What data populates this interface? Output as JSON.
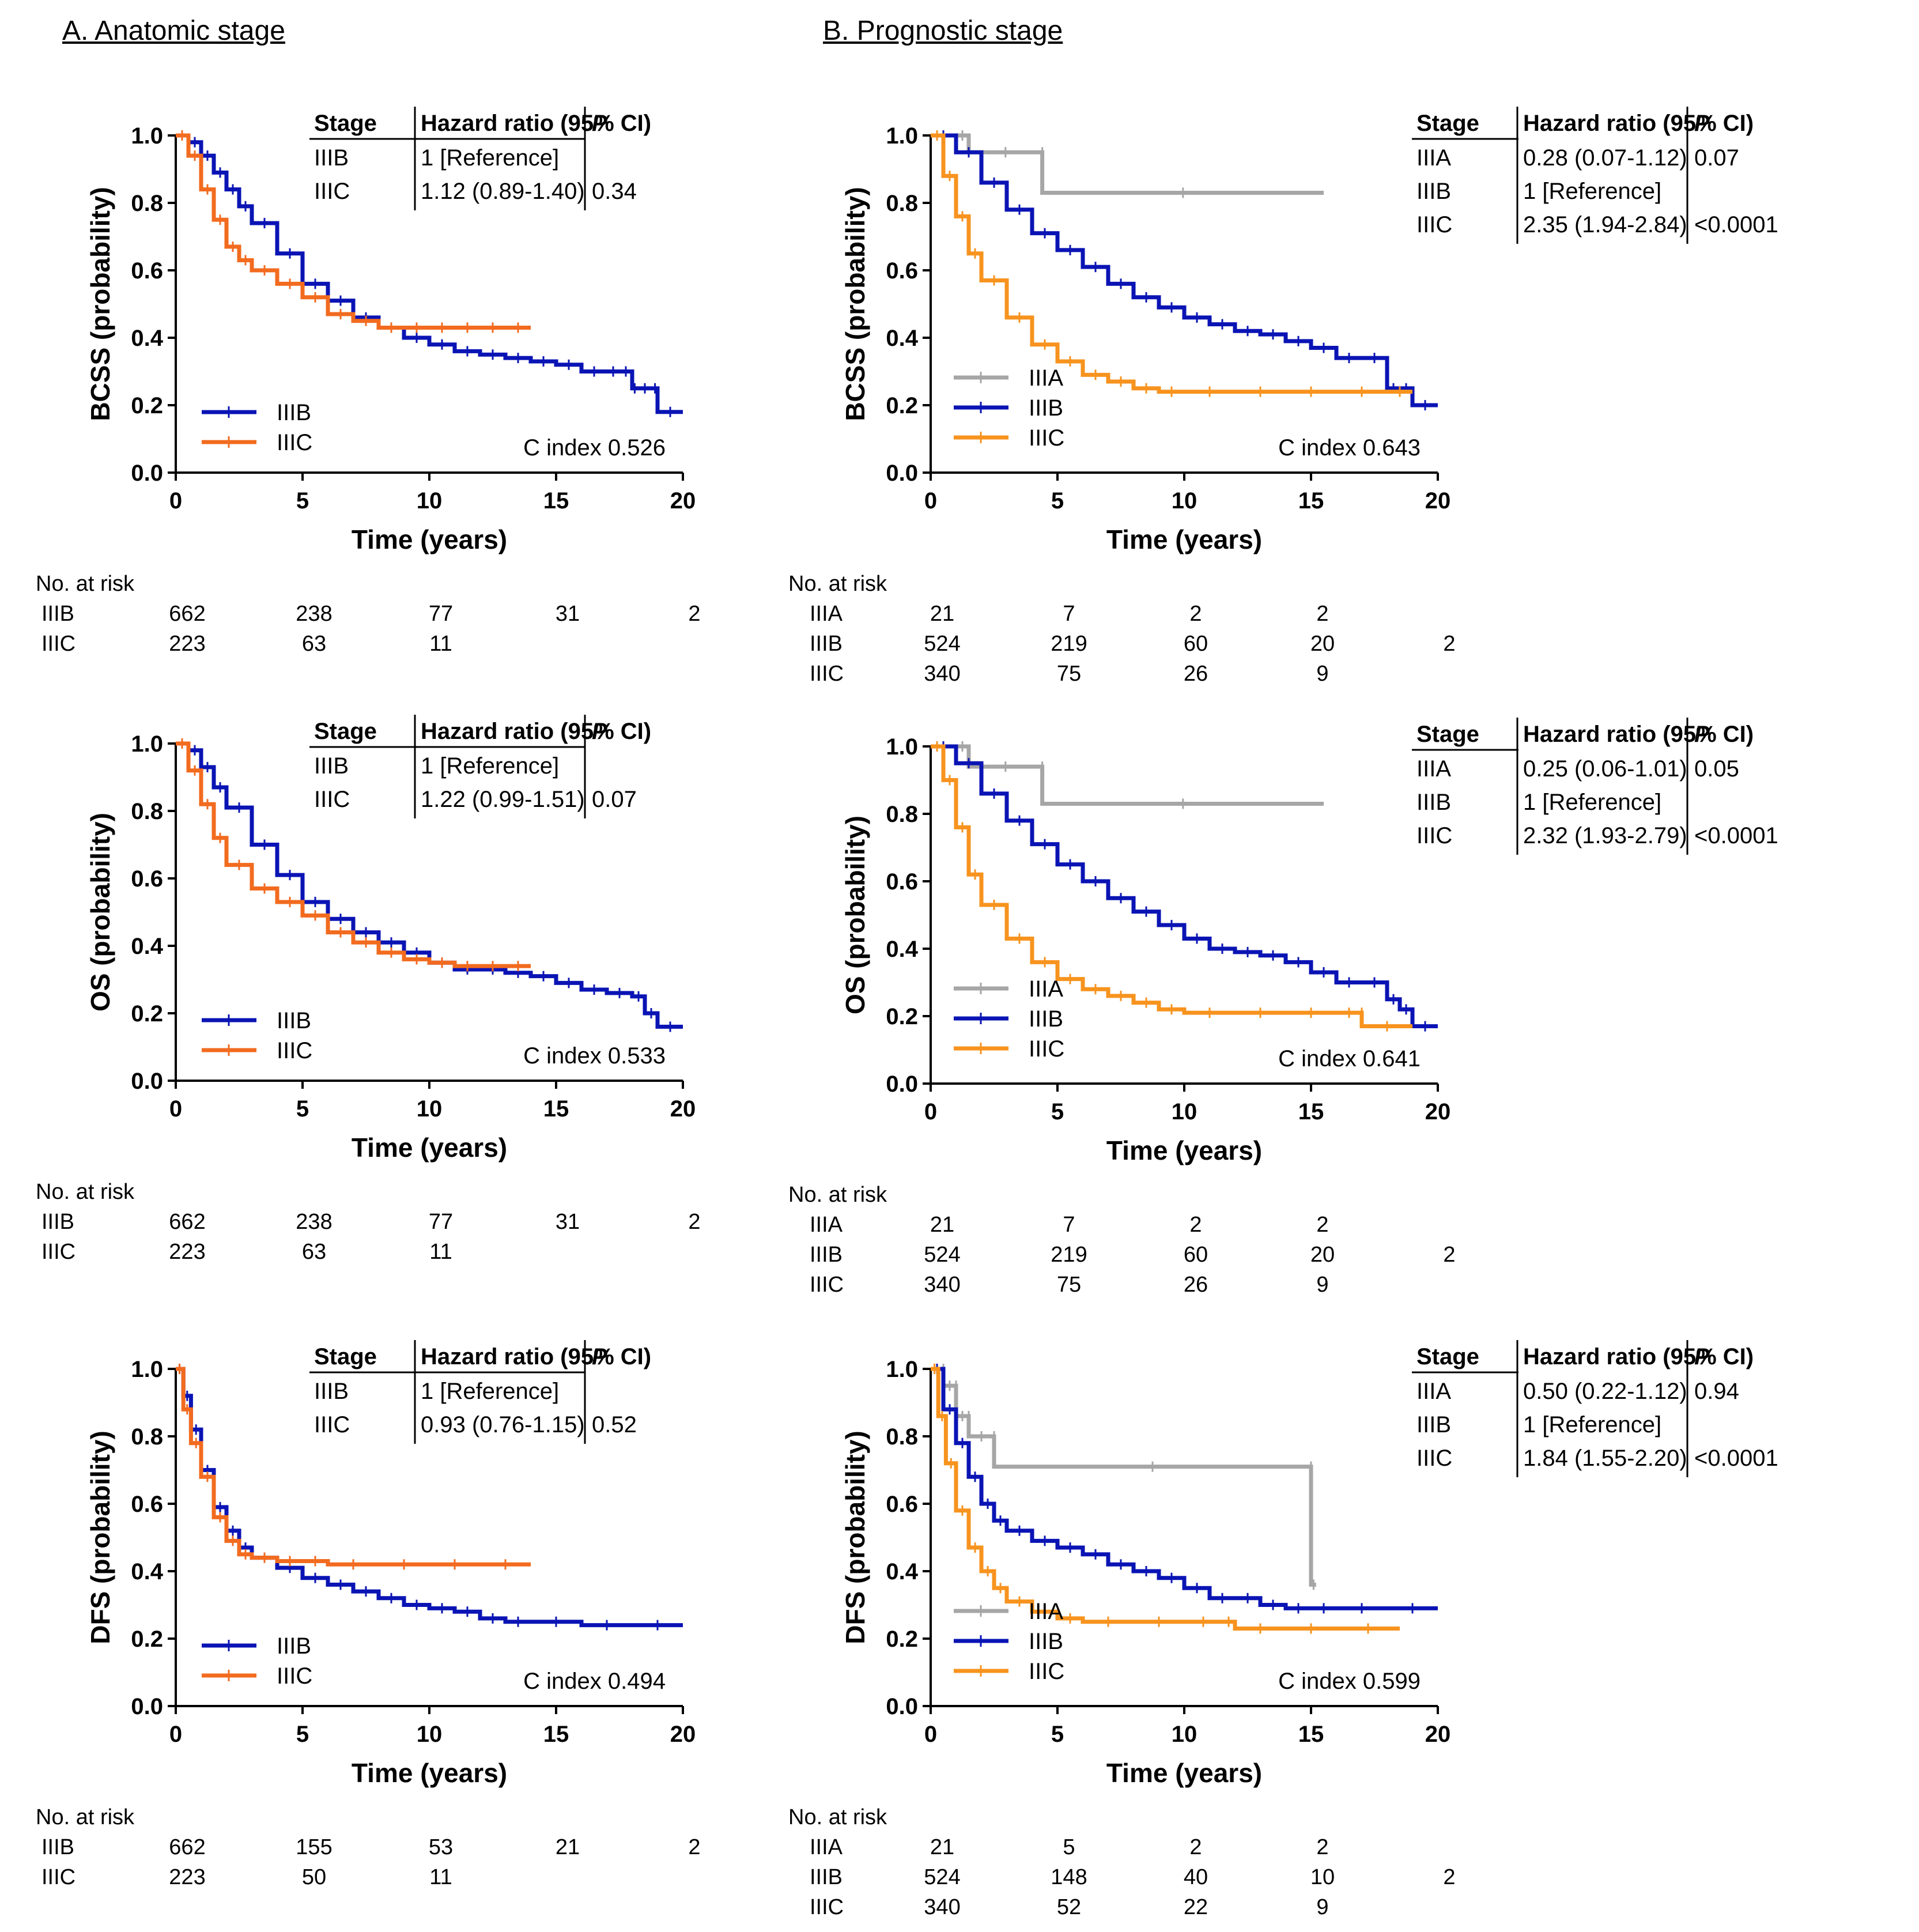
{
  "columns": {
    "a": "A. Anatomic stage",
    "b": "B. Prognostic stage"
  },
  "colors": {
    "IIIA": "#a6a6a6",
    "IIIB": "#0a14b4",
    "IIIC_anat": "#f26b1f",
    "IIIC_prog": "#f7931e"
  },
  "xticks": [
    "0",
    "5",
    "10",
    "15",
    "20"
  ],
  "yticks": [
    "0.0",
    "0.2",
    "0.4",
    "0.6",
    "0.8",
    "1.0"
  ],
  "risk_title": "No. at risk",
  "hr_header": {
    "stage": "Stage",
    "hr": "Hazard ratio (95% CI)",
    "p": "P"
  },
  "chart_data": [
    {
      "id": "a_bcss",
      "type": "line",
      "title": "",
      "xlabel": "Time (years)",
      "ylabel": "BCSS (probability)",
      "xlim": [
        0,
        20
      ],
      "ylim": [
        0,
        1
      ],
      "c_index": "C index 0.526",
      "series": [
        {
          "name": "IIIB",
          "color_key": "IIIB",
          "x": [
            0,
            0.5,
            1,
            1.5,
            2,
            2.5,
            3,
            4,
            5,
            6,
            7,
            8,
            9,
            10,
            11,
            12,
            13,
            14,
            15,
            16,
            17,
            17.5,
            18,
            18.2,
            18.8,
            19,
            20
          ],
          "y": [
            1,
            0.98,
            0.94,
            0.89,
            0.84,
            0.79,
            0.74,
            0.65,
            0.56,
            0.51,
            0.46,
            0.43,
            0.4,
            0.38,
            0.36,
            0.35,
            0.34,
            0.33,
            0.32,
            0.3,
            0.3,
            0.3,
            0.25,
            0.25,
            0.25,
            0.18,
            0.18
          ]
        },
        {
          "name": "IIIC",
          "color_key": "IIIC_anat",
          "x": [
            0,
            0.5,
            1,
            1.5,
            2,
            2.5,
            3,
            4,
            5,
            6,
            7,
            8,
            9,
            10,
            11,
            12,
            13,
            14
          ],
          "y": [
            1,
            0.94,
            0.84,
            0.75,
            0.67,
            0.63,
            0.6,
            0.56,
            0.52,
            0.47,
            0.45,
            0.43,
            0.43,
            0.43,
            0.43,
            0.43,
            0.43,
            0.43
          ]
        }
      ],
      "hr_table": [
        {
          "stage": "IIIB",
          "hr": "1 [Reference]",
          "p": ""
        },
        {
          "stage": "IIIC",
          "hr": "1.12 (0.89-1.40)",
          "p": "0.34"
        }
      ],
      "risk": [
        {
          "stage": "IIIB",
          "values": [
            "662",
            "238",
            "77",
            "31",
            "2"
          ]
        },
        {
          "stage": "IIIC",
          "values": [
            "223",
            "63",
            "11",
            "",
            ""
          ]
        }
      ]
    },
    {
      "id": "b_bcss",
      "type": "line",
      "title": "",
      "xlabel": "Time (years)",
      "ylabel": "BCSS (probability)",
      "xlim": [
        0,
        20
      ],
      "ylim": [
        0,
        1
      ],
      "c_index": "C index 0.643",
      "series": [
        {
          "name": "IIIA",
          "color_key": "IIIA",
          "x": [
            0,
            1,
            1.5,
            4.4,
            4.4,
            15.5
          ],
          "y": [
            1,
            1,
            0.95,
            0.95,
            0.83,
            0.83
          ]
        },
        {
          "name": "IIIB",
          "color_key": "IIIB",
          "x": [
            0,
            1,
            2,
            3,
            4,
            5,
            6,
            7,
            8,
            9,
            10,
            11,
            12,
            13,
            14,
            15,
            16,
            17,
            18,
            18.5,
            19,
            20
          ],
          "y": [
            1,
            0.95,
            0.86,
            0.78,
            0.71,
            0.66,
            0.61,
            0.56,
            0.52,
            0.49,
            0.46,
            0.44,
            0.42,
            0.41,
            0.39,
            0.37,
            0.34,
            0.34,
            0.25,
            0.25,
            0.2,
            0.2
          ]
        },
        {
          "name": "IIIC",
          "color_key": "IIIC_prog",
          "x": [
            0,
            0.5,
            1,
            1.5,
            2,
            3,
            4,
            5,
            6,
            7,
            8,
            9,
            10,
            12,
            14,
            16,
            18,
            19
          ],
          "y": [
            1,
            0.88,
            0.76,
            0.65,
            0.57,
            0.46,
            0.38,
            0.33,
            0.29,
            0.27,
            0.25,
            0.24,
            0.24,
            0.24,
            0.24,
            0.24,
            0.24,
            0.24
          ]
        }
      ],
      "hr_table": [
        {
          "stage": "IIIA",
          "hr": "0.28 (0.07-1.12)",
          "p": "0.07"
        },
        {
          "stage": "IIIB",
          "hr": "1 [Reference]",
          "p": ""
        },
        {
          "stage": "IIIC",
          "hr": "2.35 (1.94-2.84)",
          "p": "<0.0001"
        }
      ],
      "risk": [
        {
          "stage": "IIIA",
          "values": [
            "21",
            "7",
            "2",
            "2",
            ""
          ]
        },
        {
          "stage": "IIIB",
          "values": [
            "524",
            "219",
            "60",
            "20",
            "2"
          ]
        },
        {
          "stage": "IIIC",
          "values": [
            "340",
            "75",
            "26",
            "9",
            ""
          ]
        }
      ]
    },
    {
      "id": "a_os",
      "type": "line",
      "title": "",
      "xlabel": "Time (years)",
      "ylabel": "OS (probability)",
      "xlim": [
        0,
        20
      ],
      "ylim": [
        0,
        1
      ],
      "c_index": "C index 0.533",
      "series": [
        {
          "name": "IIIB",
          "color_key": "IIIB",
          "x": [
            0,
            0.5,
            1,
            1.5,
            2,
            3,
            4,
            5,
            6,
            7,
            8,
            9,
            10,
            11,
            12,
            13,
            14,
            15,
            16,
            17,
            18,
            18.5,
            19,
            20
          ],
          "y": [
            1,
            0.98,
            0.93,
            0.87,
            0.81,
            0.7,
            0.61,
            0.53,
            0.48,
            0.44,
            0.41,
            0.38,
            0.35,
            0.33,
            0.33,
            0.32,
            0.31,
            0.29,
            0.27,
            0.26,
            0.25,
            0.2,
            0.16,
            0.16
          ]
        },
        {
          "name": "IIIC",
          "color_key": "IIIC_anat",
          "x": [
            0,
            0.5,
            1,
            1.5,
            2,
            3,
            4,
            5,
            6,
            7,
            8,
            9,
            10,
            11,
            12,
            13,
            14
          ],
          "y": [
            1,
            0.92,
            0.82,
            0.72,
            0.64,
            0.57,
            0.53,
            0.49,
            0.44,
            0.41,
            0.38,
            0.36,
            0.35,
            0.34,
            0.34,
            0.34,
            0.34
          ]
        }
      ],
      "hr_table": [
        {
          "stage": "IIIB",
          "hr": "1 [Reference]",
          "p": ""
        },
        {
          "stage": "IIIC",
          "hr": "1.22 (0.99-1.51)",
          "p": "0.07"
        }
      ],
      "risk": [
        {
          "stage": "IIIB",
          "values": [
            "662",
            "238",
            "77",
            "31",
            "2"
          ]
        },
        {
          "stage": "IIIC",
          "values": [
            "223",
            "63",
            "11",
            "",
            ""
          ]
        }
      ]
    },
    {
      "id": "b_os",
      "type": "line",
      "title": "",
      "xlabel": "Time (years)",
      "ylabel": "OS (probability)",
      "xlim": [
        0,
        20
      ],
      "ylim": [
        0,
        1
      ],
      "c_index": "C index 0.641",
      "series": [
        {
          "name": "IIIA",
          "color_key": "IIIA",
          "x": [
            0,
            1,
            1.5,
            4.4,
            4.4,
            15.5
          ],
          "y": [
            1,
            1,
            0.94,
            0.94,
            0.83,
            0.83
          ]
        },
        {
          "name": "IIIB",
          "color_key": "IIIB",
          "x": [
            0,
            1,
            2,
            3,
            4,
            5,
            6,
            7,
            8,
            9,
            10,
            11,
            12,
            13,
            14,
            15,
            16,
            17,
            18,
            18.5,
            19,
            20
          ],
          "y": [
            1,
            0.95,
            0.86,
            0.78,
            0.71,
            0.65,
            0.6,
            0.55,
            0.51,
            0.47,
            0.43,
            0.4,
            0.39,
            0.38,
            0.36,
            0.33,
            0.3,
            0.3,
            0.25,
            0.22,
            0.17,
            0.17
          ]
        },
        {
          "name": "IIIC",
          "color_key": "IIIC_prog",
          "x": [
            0,
            0.5,
            1,
            1.5,
            2,
            3,
            4,
            5,
            6,
            7,
            8,
            9,
            10,
            12,
            14,
            16,
            17,
            17,
            19
          ],
          "y": [
            1,
            0.9,
            0.76,
            0.62,
            0.53,
            0.43,
            0.36,
            0.31,
            0.28,
            0.26,
            0.24,
            0.22,
            0.21,
            0.21,
            0.21,
            0.21,
            0.21,
            0.17,
            0.17
          ]
        }
      ],
      "hr_table": [
        {
          "stage": "IIIA",
          "hr": "0.25 (0.06-1.01)",
          "p": "0.05"
        },
        {
          "stage": "IIIB",
          "hr": "1 [Reference]",
          "p": ""
        },
        {
          "stage": "IIIC",
          "hr": "2.32 (1.93-2.79)",
          "p": "<0.0001"
        }
      ],
      "risk": [
        {
          "stage": "IIIA",
          "values": [
            "21",
            "7",
            "2",
            "2",
            ""
          ]
        },
        {
          "stage": "IIIB",
          "values": [
            "524",
            "219",
            "60",
            "20",
            "2"
          ]
        },
        {
          "stage": "IIIC",
          "values": [
            "340",
            "75",
            "26",
            "9",
            ""
          ]
        }
      ]
    },
    {
      "id": "a_dfs",
      "type": "line",
      "title": "",
      "xlabel": "Time (years)",
      "ylabel": "DFS (probability)",
      "xlim": [
        0,
        20
      ],
      "ylim": [
        0,
        1
      ],
      "c_index": "C index 0.494",
      "series": [
        {
          "name": "IIIB",
          "color_key": "IIIB",
          "x": [
            0,
            0.3,
            0.6,
            1,
            1.5,
            2,
            2.5,
            3,
            4,
            5,
            6,
            7,
            8,
            9,
            10,
            11,
            12,
            13,
            14,
            16,
            18,
            20
          ],
          "y": [
            1,
            0.92,
            0.82,
            0.7,
            0.59,
            0.52,
            0.47,
            0.44,
            0.41,
            0.38,
            0.36,
            0.34,
            0.32,
            0.3,
            0.29,
            0.28,
            0.26,
            0.25,
            0.25,
            0.24,
            0.24,
            0.24
          ]
        },
        {
          "name": "IIIC",
          "color_key": "IIIC_anat",
          "x": [
            0,
            0.3,
            0.6,
            1,
            1.5,
            2,
            2.5,
            3,
            4,
            5,
            6,
            8,
            10,
            12,
            14
          ],
          "y": [
            1,
            0.88,
            0.78,
            0.68,
            0.56,
            0.49,
            0.45,
            0.44,
            0.43,
            0.43,
            0.42,
            0.42,
            0.42,
            0.42,
            0.42
          ]
        }
      ],
      "hr_table": [
        {
          "stage": "IIIB",
          "hr": "1 [Reference]",
          "p": ""
        },
        {
          "stage": "IIIC",
          "hr": "0.93 (0.76-1.15)",
          "p": "0.52"
        }
      ],
      "risk": [
        {
          "stage": "IIIB",
          "values": [
            "662",
            "155",
            "53",
            "21",
            "2"
          ]
        },
        {
          "stage": "IIIC",
          "values": [
            "223",
            "50",
            "11",
            "",
            ""
          ]
        }
      ]
    },
    {
      "id": "b_dfs",
      "type": "line",
      "title": "",
      "xlabel": "Time (years)",
      "ylabel": "DFS (probability)",
      "xlim": [
        0,
        20
      ],
      "ylim": [
        0,
        1
      ],
      "c_index": "C index 0.599",
      "series": [
        {
          "name": "IIIA",
          "color_key": "IIIA",
          "x": [
            0,
            0.5,
            0.5,
            1,
            1,
            1.5,
            1.5,
            2.5,
            2.5,
            15,
            15,
            15.2
          ],
          "y": [
            1,
            1,
            0.95,
            0.95,
            0.86,
            0.86,
            0.8,
            0.8,
            0.71,
            0.71,
            0.36,
            0.36
          ]
        },
        {
          "name": "IIIB",
          "color_key": "IIIB",
          "x": [
            0,
            0.5,
            1,
            1.5,
            2,
            2.5,
            3,
            4,
            5,
            6,
            7,
            8,
            9,
            10,
            11,
            12,
            13,
            14,
            15,
            16,
            18,
            20
          ],
          "y": [
            1,
            0.88,
            0.78,
            0.68,
            0.6,
            0.55,
            0.52,
            0.49,
            0.47,
            0.45,
            0.42,
            0.4,
            0.38,
            0.35,
            0.32,
            0.32,
            0.3,
            0.29,
            0.29,
            0.29,
            0.29,
            0.29
          ]
        },
        {
          "name": "IIIC",
          "color_key": "IIIC_prog",
          "x": [
            0,
            0.3,
            0.6,
            1,
            1.5,
            2,
            2.5,
            3,
            4,
            5,
            6,
            8,
            10,
            11.5,
            12,
            14,
            16,
            18.5
          ],
          "y": [
            1,
            0.86,
            0.72,
            0.58,
            0.47,
            0.4,
            0.35,
            0.31,
            0.28,
            0.26,
            0.25,
            0.25,
            0.25,
            0.25,
            0.23,
            0.23,
            0.23,
            0.23
          ]
        }
      ],
      "hr_table": [
        {
          "stage": "IIIA",
          "hr": "0.50 (0.22-1.12)",
          "p": "0.94"
        },
        {
          "stage": "IIIB",
          "hr": "1 [Reference]",
          "p": ""
        },
        {
          "stage": "IIIC",
          "hr": "1.84 (1.55-2.20)",
          "p": "<0.0001"
        }
      ],
      "risk": [
        {
          "stage": "IIIA",
          "values": [
            "21",
            "5",
            "2",
            "2",
            ""
          ]
        },
        {
          "stage": "IIIB",
          "values": [
            "524",
            "148",
            "40",
            "10",
            "2"
          ]
        },
        {
          "stage": "IIIC",
          "values": [
            "340",
            "52",
            "22",
            "9",
            ""
          ]
        }
      ]
    }
  ]
}
